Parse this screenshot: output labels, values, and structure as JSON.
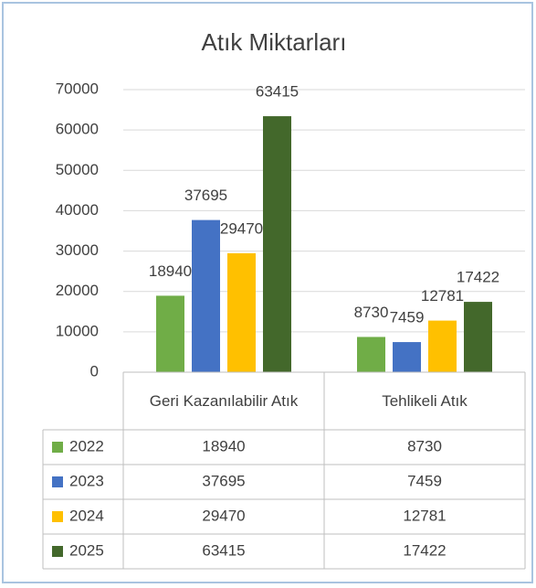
{
  "chart_data": {
    "type": "bar",
    "title": "Atık Miktarları",
    "categories": [
      "Geri Kazanılabilir Atık",
      "Tehlikeli Atık"
    ],
    "series": [
      {
        "name": "2022",
        "color": "#70ad47",
        "values": [
          18940,
          8730
        ]
      },
      {
        "name": "2023",
        "color": "#4472c4",
        "values": [
          37695,
          7459
        ]
      },
      {
        "name": "2024",
        "color": "#ffc000",
        "values": [
          29470,
          12781
        ]
      },
      {
        "name": "2025",
        "color": "#43682b",
        "values": [
          63415,
          17422
        ]
      }
    ],
    "ylim": [
      0,
      70000
    ],
    "yticks": [
      0,
      10000,
      20000,
      30000,
      40000,
      50000,
      60000,
      70000
    ],
    "grid": true,
    "data_table": true
  }
}
